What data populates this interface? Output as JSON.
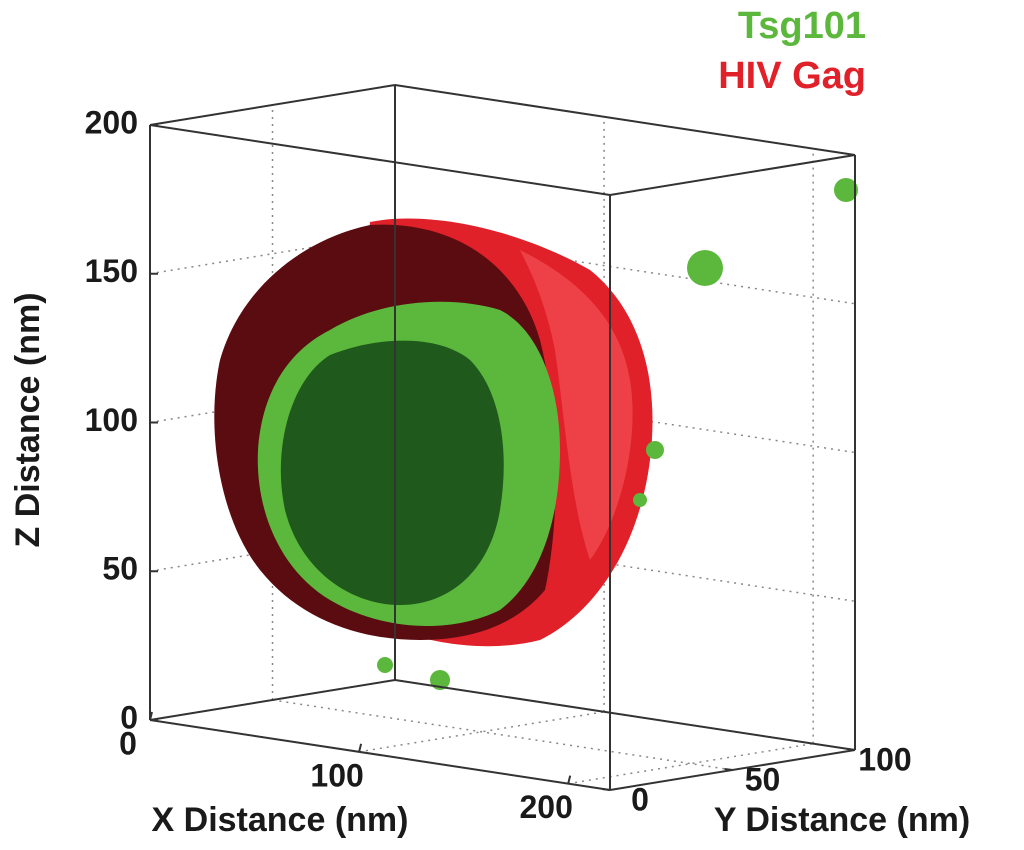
{
  "chart_data": {
    "type": "isosurface3d",
    "xlabel": "X Distance (nm)",
    "ylabel": "Y Distance (nm)",
    "zlabel": "Z Distance (nm)",
    "xlim": [
      0,
      220
    ],
    "ylim": [
      0,
      100
    ],
    "zlim": [
      0,
      200
    ],
    "xticks": [
      0,
      100,
      200
    ],
    "yticks": [
      0,
      50,
      100
    ],
    "zticks": [
      0,
      50,
      100,
      150,
      200
    ],
    "grid": true,
    "series": [
      {
        "name": "Tsg101",
        "color": "#5cb83c"
      },
      {
        "name": "HIV Gag",
        "color": "#e0212a"
      }
    ]
  }
}
